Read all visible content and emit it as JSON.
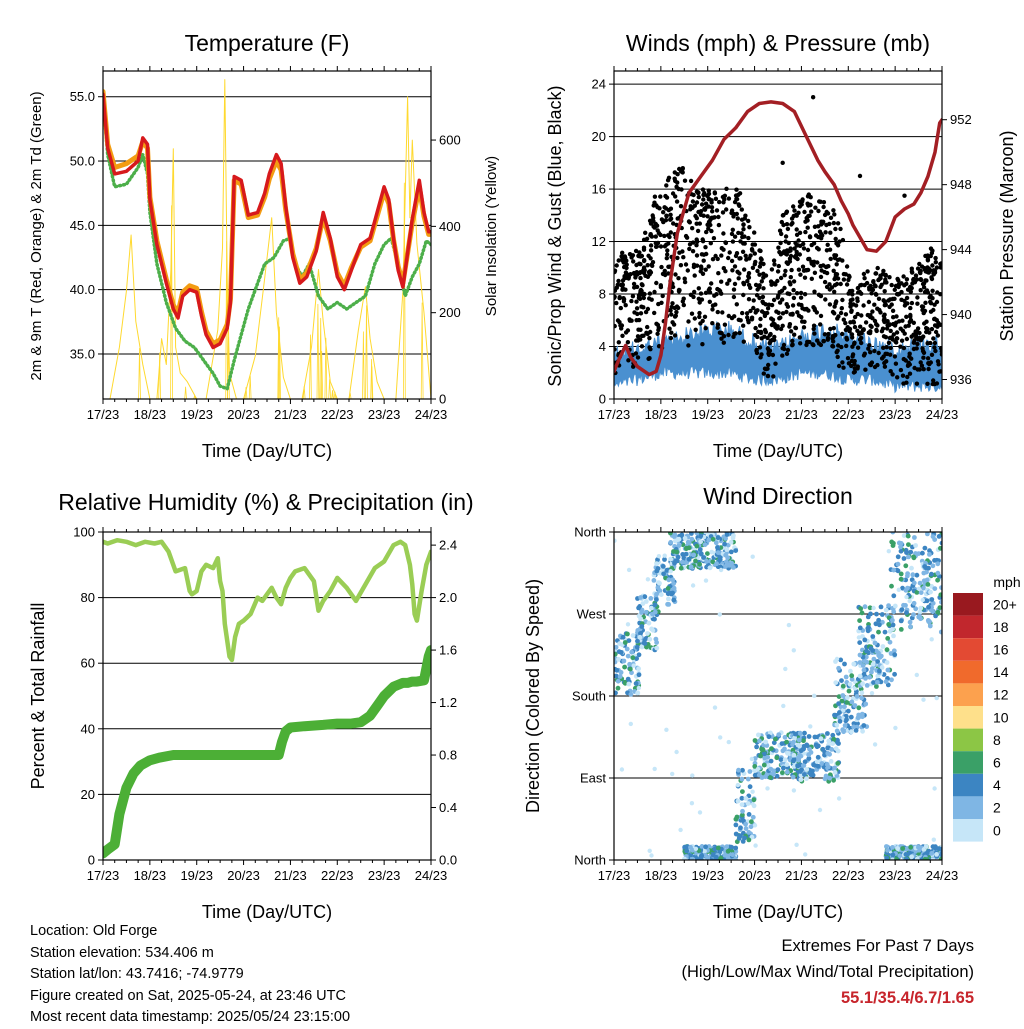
{
  "x_ticks": [
    "17/23",
    "18/23",
    "19/23",
    "20/23",
    "21/23",
    "22/23",
    "23/23",
    "24/23"
  ],
  "x_label": "Time (Day/UTC)",
  "chart_data": [
    {
      "type": "line",
      "title": "Temperature (F)",
      "xlabel": "Time (Day/UTC)",
      "ylabel": "2m & 9m T (Red, Orange) & 2m Td (Green)",
      "ylabel_right": "Solar Insolation (Yellow)",
      "ylim": [
        31.5,
        57.0
      ],
      "ylim_right": [
        0,
        760
      ],
      "yticks": [
        "35.0",
        "40.0",
        "45.0",
        "50.0",
        "55.0"
      ],
      "yticks_right": [
        "0",
        "200",
        "400",
        "600"
      ],
      "xlim": [
        0,
        7
      ],
      "grid": true,
      "series": [
        {
          "color": "#d7191c",
          "x": [
            0,
            0.1,
            0.25,
            0.5,
            0.75,
            0.85,
            0.95,
            1.0,
            1.15,
            1.35,
            1.5,
            1.6,
            1.7,
            1.85,
            2.0,
            2.1,
            2.2,
            2.35,
            2.5,
            2.65,
            2.72,
            2.8,
            2.95,
            3.1,
            3.3,
            3.45,
            3.55,
            3.7,
            3.8,
            3.9,
            4.05,
            4.2,
            4.35,
            4.55,
            4.7,
            4.85,
            5.0,
            5.15,
            5.3,
            5.5,
            5.7,
            5.85,
            6.0,
            6.1,
            6.2,
            6.3,
            6.4,
            6.6,
            6.75,
            6.85,
            6.95,
            7.0
          ],
          "y": [
            55.2,
            51.0,
            49.0,
            49.2,
            50.0,
            51.8,
            51.3,
            47.0,
            43.5,
            40.5,
            38.5,
            37.8,
            39.5,
            40.0,
            39.8,
            38.0,
            36.5,
            35.5,
            35.8,
            37.0,
            39.0,
            48.8,
            48.5,
            45.8,
            46.0,
            47.5,
            49.0,
            50.5,
            49.8,
            46.5,
            42.5,
            40.5,
            41.0,
            43.0,
            46.0,
            44.0,
            41.0,
            40.0,
            41.5,
            43.5,
            44.0,
            46.0,
            48.0,
            47.0,
            44.0,
            41.5,
            40.2,
            45.5,
            48.5,
            46.0,
            44.5,
            44.5
          ]
        },
        {
          "color": "#f39c12",
          "x": [
            0,
            0.1,
            0.25,
            0.5,
            0.75,
            0.85,
            0.95,
            1.0,
            1.15,
            1.35,
            1.5,
            1.6,
            1.7,
            1.85,
            2.0,
            2.1,
            2.2,
            2.35,
            2.5,
            2.65,
            2.72,
            2.8,
            2.95,
            3.1,
            3.3,
            3.45,
            3.55,
            3.7,
            3.8,
            3.9,
            4.05,
            4.2,
            4.35,
            4.55,
            4.7,
            4.85,
            5.0,
            5.15,
            5.3,
            5.5,
            5.7,
            5.85,
            6.0,
            6.1,
            6.2,
            6.3,
            6.4,
            6.6,
            6.75,
            6.85,
            6.95,
            7.0
          ],
          "y": [
            55.4,
            51.3,
            49.5,
            49.8,
            50.4,
            51.5,
            51.0,
            47.2,
            43.8,
            40.8,
            38.8,
            38.2,
            39.8,
            40.3,
            40.1,
            38.3,
            36.8,
            35.8,
            36.1,
            37.3,
            39.3,
            48.5,
            48.2,
            45.6,
            45.8,
            47.2,
            48.6,
            50.0,
            49.3,
            46.2,
            42.8,
            40.8,
            41.3,
            43.2,
            45.6,
            43.8,
            41.3,
            40.3,
            41.7,
            43.3,
            43.8,
            45.7,
            47.6,
            46.7,
            43.9,
            41.8,
            40.5,
            45.2,
            48.0,
            45.7,
            44.3,
            44.3
          ]
        },
        {
          "color": "#4daf4a",
          "x": [
            0,
            0.1,
            0.25,
            0.5,
            0.75,
            0.85,
            0.95,
            1.0,
            1.15,
            1.35,
            1.55,
            1.75,
            1.95,
            2.15,
            2.35,
            2.5,
            2.65,
            2.8,
            2.95,
            3.1,
            3.25,
            3.45,
            3.65,
            3.85,
            4.0,
            4.1,
            4.25,
            4.4,
            4.6,
            4.8,
            5.0,
            5.2,
            5.4,
            5.6,
            5.8,
            6.0,
            6.15,
            6.3,
            6.45,
            6.6,
            6.75,
            6.9,
            7.0
          ],
          "y": [
            55.0,
            50.5,
            48.0,
            48.2,
            49.5,
            50.5,
            49.0,
            46.0,
            42.0,
            39.0,
            37.0,
            36.0,
            35.5,
            34.5,
            33.5,
            32.5,
            32.3,
            34.5,
            36.5,
            38.5,
            40.0,
            42.0,
            42.5,
            43.8,
            44.0,
            42.0,
            41.0,
            42.0,
            39.5,
            38.5,
            39.0,
            38.5,
            39.0,
            39.5,
            42.0,
            43.5,
            44.0,
            42.0,
            39.5,
            41.0,
            42.0,
            43.8,
            43.5
          ]
        },
        {
          "color": "#ffd92f",
          "x": [
            0,
            0.15,
            0.35,
            0.5,
            0.6,
            0.7,
            0.85,
            1.0,
            1.15,
            1.25,
            1.35,
            1.45,
            1.5,
            1.55,
            1.65,
            1.8,
            2.0,
            2.2,
            2.45,
            2.55,
            2.6,
            2.65,
            2.7,
            2.85,
            3.0,
            3.25,
            3.45,
            3.6,
            3.7,
            3.85,
            4.0,
            4.25,
            4.45,
            4.6,
            4.7,
            4.85,
            5.0,
            5.25,
            5.45,
            5.6,
            5.7,
            5.85,
            6.0,
            6.25,
            6.4,
            6.5,
            6.55,
            6.6,
            6.7,
            6.85,
            7.0
          ],
          "y": [
            0,
            0,
            120,
            250,
            380,
            180,
            80,
            0,
            0,
            140,
            80,
            300,
            580,
            120,
            60,
            40,
            0,
            0,
            160,
            350,
            740,
            280,
            60,
            0,
            0,
            100,
            280,
            420,
            200,
            50,
            0,
            0,
            120,
            300,
            180,
            40,
            0,
            0,
            160,
            260,
            140,
            40,
            0,
            0,
            250,
            700,
            420,
            600,
            360,
            200,
            0
          ]
        }
      ]
    },
    {
      "type": "scatter",
      "title": "Winds (mph) & Pressure (mb)",
      "xlabel": "Time (Day/UTC)",
      "ylabel": "Sonic/Prop Wind & Gust (Blue, Black)",
      "ylabel_right": "Station Pressure (Maroon)",
      "ylim": [
        0,
        25
      ],
      "ylim_right": [
        934.8,
        955.0
      ],
      "yticks": [
        "0",
        "4",
        "8",
        "12",
        "16",
        "20",
        "24"
      ],
      "yticks_right": [
        "936",
        "940",
        "944",
        "948",
        "952"
      ],
      "xlim": [
        0,
        7
      ],
      "grid": true,
      "gust_envelope": {
        "color": "#000000",
        "x": [
          0,
          0.3,
          0.6,
          0.9,
          1.2,
          1.5,
          1.8,
          2.1,
          2.4,
          2.7,
          3.0,
          3.3,
          3.6,
          3.9,
          4.2,
          4.5,
          4.8,
          5.1,
          5.4,
          5.7,
          6.0,
          6.3,
          6.6,
          6.9,
          7.0
        ],
        "low": [
          1.5,
          2,
          3,
          3,
          4,
          4,
          4,
          4,
          4,
          4,
          2,
          1,
          3,
          4,
          4,
          4,
          2,
          2,
          2,
          2,
          1,
          1,
          1,
          1,
          1
        ],
        "high": [
          13,
          11,
          12,
          16,
          17,
          18,
          16,
          16,
          17,
          16,
          13,
          9,
          14,
          15,
          16,
          15,
          14,
          8,
          10,
          10,
          9,
          10,
          11,
          12,
          12
        ]
      },
      "wind_band": {
        "color": "#4a90d0",
        "x": [
          0,
          0.5,
          1.0,
          1.5,
          2.0,
          2.5,
          3.0,
          3.5,
          4.0,
          4.5,
          5.0,
          5.5,
          6.0,
          6.5,
          7.0
        ],
        "low": [
          0.5,
          1,
          1.5,
          1.5,
          1.5,
          1.5,
          1,
          1,
          1.5,
          1.5,
          1,
          1,
          0.5,
          0.5,
          0.5
        ],
        "high": [
          4,
          4.5,
          5,
          5.5,
          6,
          6,
          5,
          4.5,
          5.5,
          6,
          5.5,
          5,
          4.5,
          5,
          5
        ]
      },
      "pressure": {
        "color": "#a31f24",
        "x": [
          0,
          0.1,
          0.25,
          0.35,
          0.5,
          0.75,
          0.9,
          1.0,
          1.1,
          1.2,
          1.35,
          1.6,
          1.85,
          2.1,
          2.35,
          2.6,
          2.85,
          3.1,
          3.35,
          3.6,
          3.85,
          4.1,
          4.35,
          4.5,
          4.7,
          4.85,
          5.0,
          5.1,
          5.2,
          5.4,
          5.6,
          5.8,
          6.0,
          6.2,
          6.4,
          6.55,
          6.7,
          6.85,
          6.95,
          7.0
        ],
        "y": [
          936.5,
          937.2,
          938.1,
          937.4,
          936.8,
          936.3,
          936.5,
          937.5,
          939.5,
          942.0,
          945.0,
          947.5,
          948.5,
          949.5,
          950.8,
          951.5,
          952.5,
          953.0,
          953.1,
          953.0,
          952.5,
          951.0,
          949.5,
          948.8,
          948.0,
          947.0,
          946.2,
          945.5,
          945.0,
          944.0,
          943.9,
          944.5,
          946.0,
          946.5,
          946.8,
          947.5,
          948.5,
          950.0,
          951.8,
          952.0
        ]
      }
    },
    {
      "type": "line",
      "title": "Relative Humidity (%) & Precipitation (in)",
      "xlabel": "Time (Day/UTC)",
      "ylabel": "Percent & Total Rainfall",
      "ylim": [
        0,
        100
      ],
      "ylim_right": [
        0,
        2.5
      ],
      "yticks": [
        "0",
        "20",
        "40",
        "60",
        "80",
        "100"
      ],
      "yticks_right": [
        "0.0",
        "0.4",
        "0.8",
        "1.2",
        "1.6",
        "2.0",
        "2.4"
      ],
      "xlim": [
        0,
        7
      ],
      "grid": true,
      "series": [
        {
          "color": "#9acd55",
          "x": [
            0,
            0.1,
            0.3,
            0.5,
            0.7,
            0.9,
            1.1,
            1.25,
            1.4,
            1.55,
            1.75,
            1.85,
            1.9,
            2.0,
            2.1,
            2.2,
            2.35,
            2.45,
            2.5,
            2.55,
            2.6,
            2.7,
            2.75,
            2.82,
            2.9,
            3.0,
            3.15,
            3.3,
            3.4,
            3.5,
            3.6,
            3.7,
            3.8,
            3.9,
            4.0,
            4.1,
            4.3,
            4.5,
            4.6,
            4.7,
            4.85,
            5.0,
            5.2,
            5.4,
            5.6,
            5.8,
            6.0,
            6.2,
            6.35,
            6.45,
            6.55,
            6.6,
            6.65,
            6.7,
            6.8,
            6.9,
            7.0
          ],
          "y": [
            97,
            96.5,
            97.5,
            97,
            96,
            97,
            96.5,
            97,
            94,
            88,
            89,
            82,
            81,
            82,
            88,
            90,
            89,
            92,
            85,
            82,
            72,
            62,
            61,
            68,
            72,
            73,
            75,
            80,
            79,
            81,
            83,
            80,
            78,
            83,
            86,
            88,
            89,
            85,
            76,
            79,
            82,
            86,
            83,
            79,
            84,
            89,
            91,
            96,
            97,
            96,
            90,
            84,
            75,
            73,
            82,
            90,
            94
          ]
        },
        {
          "color": "#4caf36",
          "x": [
            0,
            0.1,
            0.25,
            0.35,
            0.5,
            0.65,
            0.8,
            1.0,
            1.2,
            1.5,
            2.0,
            2.5,
            3.0,
            3.5,
            3.75,
            3.82,
            3.9,
            4.0,
            4.3,
            4.7,
            5.0,
            5.3,
            5.5,
            5.7,
            5.9,
            6.0,
            6.2,
            6.4,
            6.5,
            6.6,
            6.7,
            6.85,
            6.95,
            7.0
          ],
          "y": [
            0.05,
            0.08,
            0.12,
            0.35,
            0.55,
            0.66,
            0.72,
            0.76,
            0.78,
            0.8,
            0.8,
            0.8,
            0.8,
            0.8,
            0.8,
            0.9,
            0.98,
            1.01,
            1.02,
            1.03,
            1.04,
            1.04,
            1.05,
            1.1,
            1.2,
            1.25,
            1.32,
            1.35,
            1.35,
            1.36,
            1.36,
            1.37,
            1.55,
            1.6
          ]
        }
      ]
    },
    {
      "type": "scatter",
      "title": "Wind Direction",
      "xlabel": "Time (Day/UTC)",
      "ylabel": "Direction (Colored By Speed)",
      "yticks": [
        "North",
        "East",
        "South",
        "West",
        "North"
      ],
      "ylim": [
        0,
        360
      ],
      "xlim": [
        0,
        7
      ],
      "grid": true,
      "legend_title": "mph",
      "legend_labels": [
        "20+",
        "18",
        "16",
        "14",
        "12",
        "10",
        "8",
        "6",
        "4",
        "2",
        "0"
      ],
      "legend_colors": [
        "#99191f",
        "#c1272d",
        "#e34a33",
        "#f06a2c",
        "#fca14e",
        "#fee08b",
        "#8cc645",
        "#3aa067",
        "#3c85c2",
        "#7fb6e4",
        "#c6e6f8"
      ],
      "clusters": [
        {
          "x": [
            0.0,
            0.55
          ],
          "y": [
            180,
            250
          ]
        },
        {
          "x": [
            0.5,
            0.95
          ],
          "y": [
            230,
            290
          ]
        },
        {
          "x": [
            0.85,
            1.3
          ],
          "y": [
            280,
            330
          ]
        },
        {
          "x": [
            1.2,
            2.6
          ],
          "y": [
            320,
            360
          ]
        },
        {
          "x": [
            1.5,
            2.6
          ],
          "y": [
            0,
            15
          ]
        },
        {
          "x": [
            2.6,
            3.0
          ],
          "y": [
            20,
            100
          ]
        },
        {
          "x": [
            3.0,
            4.0
          ],
          "y": [
            90,
            140
          ]
        },
        {
          "x": [
            3.8,
            4.8
          ],
          "y": [
            85,
            140
          ]
        },
        {
          "x": [
            4.7,
            5.4
          ],
          "y": [
            140,
            220
          ]
        },
        {
          "x": [
            5.2,
            6.0
          ],
          "y": [
            190,
            280
          ]
        },
        {
          "x": [
            5.9,
            7.0
          ],
          "y": [
            250,
            360
          ]
        },
        {
          "x": [
            5.8,
            7.0
          ],
          "y": [
            0,
            15
          ]
        }
      ]
    }
  ],
  "info": {
    "location": "Location: Old Forge",
    "elevation": "Station elevation: 534.406 m",
    "latlon": "Station lat/lon: 43.7416; -74.9779",
    "created": "Figure created on Sat, 2025-05-24, at 23:46 UTC",
    "recent": "Most recent data timestamp: 2025/05/24 23:15:00"
  },
  "extremes": {
    "title": "Extremes For Past 7 Days",
    "subtitle": "(High/Low/Max Wind/Total Precipitation)",
    "values": "55.1/35.4/6.7/1.65"
  }
}
